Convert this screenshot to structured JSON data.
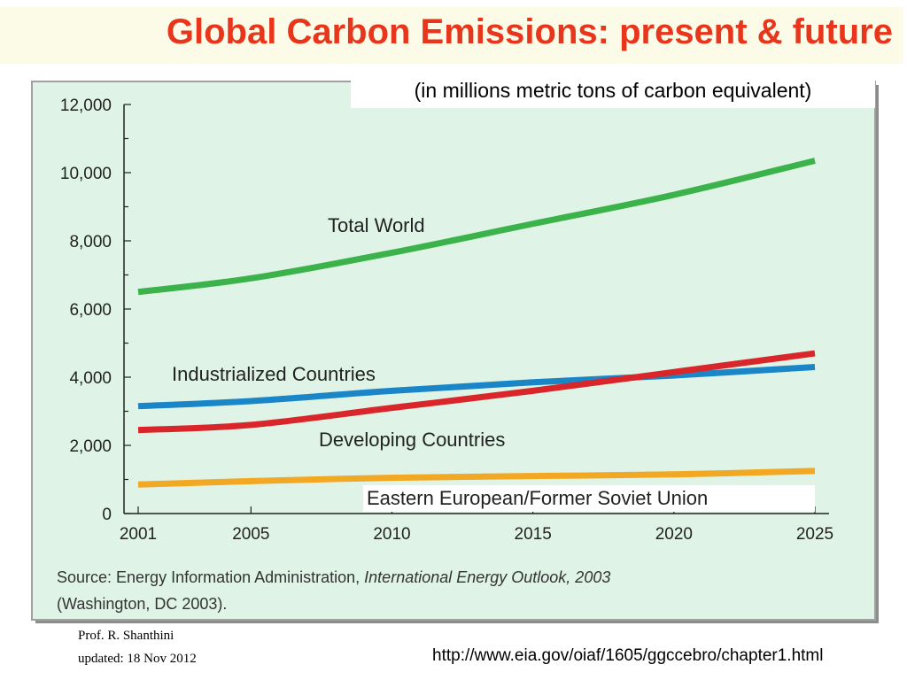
{
  "page": {
    "title": "Global Carbon Emissions: present & future",
    "subtitle": "(in millions metric tons of carbon equivalent)",
    "source_line1_prefix": "Source: Energy Information Administration, ",
    "source_line1_italic": "International Energy Outlook, 2003",
    "source_line2": "(Washington, DC 2003).",
    "author": "Prof. R. Shanthini",
    "updated": "updated: 18 Nov 2012",
    "url": "http://www.eia.gov/oiaf/1605/ggccebro/chapter1.html"
  },
  "chart_data": {
    "type": "line",
    "title": "",
    "xlabel": "",
    "ylabel": "",
    "x": [
      2001,
      2005,
      2010,
      2015,
      2020,
      2025
    ],
    "x_tick_labels": [
      "2001",
      "2005",
      "2010",
      "2015",
      "2020",
      "2025"
    ],
    "y_tick_values": [
      0,
      2000,
      4000,
      6000,
      8000,
      10000,
      12000
    ],
    "y_tick_labels": [
      "0",
      "2,000",
      "4,000",
      "6,000",
      "8,000",
      "10,000",
      "12,000"
    ],
    "ylim": [
      0,
      12000
    ],
    "xlim": [
      2001,
      2025
    ],
    "grid": false,
    "legend": "inline labels",
    "series": [
      {
        "name": "Total World",
        "color": "#3cb34a",
        "values": [
          6500,
          6900,
          7650,
          8500,
          9350,
          10350
        ]
      },
      {
        "name": "Industrialized Countries",
        "color": "#1a86c8",
        "values": [
          3150,
          3300,
          3600,
          3850,
          4050,
          4300
        ]
      },
      {
        "name": "Developing Countries",
        "color": "#d9262a",
        "values": [
          2450,
          2600,
          3100,
          3600,
          4150,
          4700
        ]
      },
      {
        "name": "Eastern European/Former Soviet Union",
        "color": "#f2a823",
        "values": [
          850,
          950,
          1050,
          1100,
          1150,
          1250
        ]
      }
    ],
    "colors": {
      "panel_background": "#dff4e6",
      "panel_border": "#a0a0a0",
      "title": "#e8361c"
    }
  }
}
